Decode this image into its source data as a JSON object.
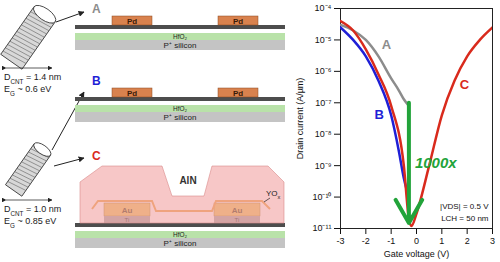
{
  "chart_data": {
    "type": "line",
    "xlabel": "Gate voltage (V)",
    "ylabel": "Drain current (A/µm)",
    "log": "y",
    "xlim": [
      -3,
      3
    ],
    "xticks": [
      -3,
      -2,
      -1,
      0,
      1,
      2,
      3
    ],
    "ylim": [
      1e-11,
      0.0001
    ],
    "yticks": [
      {
        "value": 1e-11,
        "label": "10⁻¹¹"
      },
      {
        "value": 1e-10,
        "label": "10⁻¹⁰"
      },
      {
        "value": 1e-09,
        "label": "10⁻⁹"
      },
      {
        "value": 1e-08,
        "label": "10⁻⁸"
      },
      {
        "value": 1e-07,
        "label": "10⁻⁷"
      },
      {
        "value": 1e-06,
        "label": "10⁻⁶"
      },
      {
        "value": 1e-05,
        "label": "10⁻⁵"
      },
      {
        "value": 0.0001,
        "label": "10⁻⁴"
      }
    ],
    "series": [
      {
        "name": "A",
        "color": "#8c8c8c",
        "x": [
          -3,
          -2.5,
          -2,
          -1.5,
          -1,
          -0.7,
          -0.5,
          -0.3
        ],
        "values": [
          3e-05,
          2e-05,
          1e-05,
          3e-06,
          6e-07,
          2.5e-07,
          1.3e-07,
          8e-08
        ]
      },
      {
        "name": "B",
        "color": "#1f1fd6",
        "x": [
          -3,
          -2.5,
          -2,
          -1.5,
          -1,
          -0.7,
          -0.5,
          -0.3
        ],
        "values": [
          2.5e-05,
          1e-05,
          3e-06,
          5e-07,
          4e-08,
          3e-09,
          4e-10,
          1e-10
        ]
      },
      {
        "name": "C",
        "color": "#d92a1c",
        "x": [
          -3,
          -2.5,
          -2,
          -1.5,
          -1,
          -0.5,
          -0.3,
          -0.2,
          0,
          0.5,
          1,
          1.5,
          2,
          2.5,
          3
        ],
        "values": [
          4e-05,
          2e-05,
          5e-06,
          8e-07,
          8e-08,
          1e-09,
          2e-11,
          1.2e-11,
          3e-11,
          1e-09,
          4e-08,
          5e-07,
          3e-06,
          1e-05,
          2.5e-05
        ]
      }
    ],
    "arrow": {
      "x": -0.3,
      "from": 1e-07,
      "to": 1.5e-11,
      "color": "#22a33a"
    },
    "annotations": [
      {
        "text": "1000x",
        "color": "#22a33a"
      },
      {
        "text": "|VDS| = 0.5 V"
      },
      {
        "text": "LCH = 50 nm"
      }
    ]
  },
  "diagram": {
    "nanotubes": [
      {
        "diameter": {
          "base": "D",
          "sub": "CNT",
          "rest": " = 1.4 nm"
        },
        "gap": {
          "base": "E",
          "sub": "G",
          "rest": " ~ 0.6 eV"
        }
      },
      {
        "diameter": {
          "base": "D",
          "sub": "CNT",
          "rest": " = 1.0 nm"
        },
        "gap": {
          "base": "E",
          "sub": "G",
          "rest": " ~ 0.85 eV"
        }
      }
    ],
    "devices": [
      {
        "label": "A",
        "contacts": [
          "Pd",
          "Pd"
        ],
        "dielectric": "HfO₂",
        "substrate": "P⁺ silicon"
      },
      {
        "label": "B",
        "contacts": [
          "Pd",
          "Pd"
        ],
        "dielectric": "HfO₂",
        "substrate": "P⁺ silicon"
      },
      {
        "label": "C",
        "contacts": [
          {
            "metal": "Au",
            "adhesion": "Ti"
          },
          {
            "metal": "Au",
            "adhesion": "Ti"
          }
        ],
        "passivation": "AlN",
        "interlayer": {
          "base": "YO",
          "sub": "x",
          "rest": ""
        },
        "dielectric": "HfO₂",
        "substrate": "P⁺ silicon"
      }
    ]
  }
}
